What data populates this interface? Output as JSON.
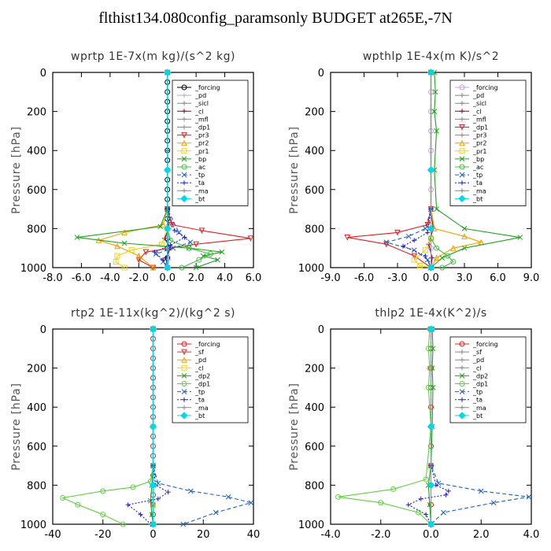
{
  "page": {
    "title": "flthist134.080config_paramsonly  BUDGET at265E,-7N"
  },
  "chart_data": [
    {
      "type": "line",
      "panel": "top-left",
      "title": "wprtp  1E-7x(m kg)/(s^2 kg)",
      "ylabel": "Pressure [hPa]",
      "xlim": [
        -8,
        6
      ],
      "ylim": [
        0,
        1000
      ],
      "y_inverted": true,
      "xticks": [
        -8,
        -6,
        -4,
        -2,
        0,
        2,
        4,
        6
      ],
      "xtick_labels": [
        "-8.0",
        "-6.0",
        "-4.0",
        "-2.0",
        "0.0",
        "2.0",
        "4.0",
        "6.0"
      ],
      "yticks": [
        0,
        200,
        400,
        600,
        800,
        1000
      ],
      "legend": [
        "_forcing",
        "_pd",
        "_sicl",
        "_cl",
        "_mfl",
        "_dp1",
        "_pr3",
        "_pr2",
        "_pr1",
        "_bp",
        "_ac",
        "_tp",
        "_ta",
        "_ma",
        "_bt"
      ],
      "legend_position": "top-right",
      "series": [
        {
          "name": "_forcing",
          "color": "#000000",
          "dash": "",
          "marker": "o",
          "x": [
            0,
            0,
            0,
            0,
            0,
            0,
            0,
            0,
            0,
            0,
            0,
            0,
            0,
            0,
            0,
            0,
            0,
            0,
            0,
            0,
            0
          ],
          "y": [
            0,
            50,
            100,
            150,
            200,
            250,
            300,
            350,
            400,
            450,
            500,
            550,
            600,
            650,
            700,
            750,
            800,
            850,
            900,
            950,
            1000
          ]
        },
        {
          "name": "_pd",
          "color": "#c8a0d8",
          "dash": "",
          "marker": "+",
          "x": [
            0,
            0,
            0,
            0.05,
            0.05,
            0.1,
            0.1,
            0.05
          ],
          "y": [
            0,
            400,
            700,
            780,
            840,
            900,
            960,
            1000
          ]
        },
        {
          "name": "_cl",
          "color": "#800040",
          "dash": "",
          "marker": "+",
          "x": [
            0,
            0,
            0,
            0.1,
            -0.2,
            0.2,
            -0.1,
            0
          ],
          "y": [
            0,
            400,
            700,
            800,
            850,
            900,
            950,
            1000
          ]
        },
        {
          "name": "_pr3",
          "color": "#e02020",
          "dash": "",
          "marker": "v",
          "x": [
            0,
            0,
            0.3,
            2.4,
            5.8,
            2.0,
            -1.5,
            -2.0,
            -1.0
          ],
          "y": [
            0,
            700,
            780,
            810,
            850,
            880,
            920,
            960,
            1000
          ]
        },
        {
          "name": "_pr2",
          "color": "#f0a000",
          "dash": "",
          "marker": "^",
          "x": [
            0,
            0,
            -0.3,
            -3.0,
            -4.8,
            -3.5,
            -2.0,
            -1.0
          ],
          "y": [
            0,
            700,
            780,
            820,
            860,
            890,
            940,
            1000
          ]
        },
        {
          "name": "_pr1",
          "color": "#f0d020",
          "dash": "",
          "marker": "s",
          "x": [
            0,
            0,
            -0.4,
            -2.5,
            -3.5,
            -3.6,
            -3.0
          ],
          "y": [
            0,
            800,
            880,
            910,
            940,
            970,
            1000
          ]
        },
        {
          "name": "_bp",
          "color": "#20a020",
          "dash": "",
          "marker": "x",
          "x": [
            0,
            0,
            -0.5,
            -6.3,
            -3.0,
            1.5,
            3.8,
            2.5,
            3.5,
            2.0
          ],
          "y": [
            0,
            700,
            790,
            845,
            875,
            900,
            920,
            940,
            960,
            1000
          ]
        },
        {
          "name": "_ac",
          "color": "#40c040",
          "dash": "",
          "marker": "o",
          "x": [
            0,
            0,
            0.2,
            1.5,
            3.0,
            2.2,
            1.0
          ],
          "y": [
            0,
            800,
            860,
            900,
            930,
            960,
            1000
          ]
        },
        {
          "name": "_tp",
          "color": "#2060c0",
          "dash": "5,3",
          "marker": "x",
          "x": [
            0,
            0,
            0.8,
            1.6,
            0.4,
            -0.8,
            -0.3,
            0
          ],
          "y": [
            0,
            700,
            820,
            870,
            900,
            930,
            970,
            1000
          ]
        },
        {
          "name": "_ta",
          "color": "#2020c0",
          "dash": "2,2",
          "marker": "+",
          "x": [
            0,
            0,
            0.5,
            1.2,
            0.2,
            -0.9,
            -0.3,
            0
          ],
          "y": [
            0,
            700,
            810,
            845,
            885,
            920,
            960,
            1000
          ]
        },
        {
          "name": "_bt",
          "color": "#00d8e8",
          "dash": "",
          "marker": "d",
          "x": [
            0,
            0,
            0,
            0
          ],
          "y": [
            0,
            500,
            800,
            1000
          ]
        }
      ]
    },
    {
      "type": "line",
      "panel": "top-right",
      "title": "wpthlp  1E-4x(m K)/s^2",
      "ylabel": "Pressure [hPa]",
      "xlim": [
        -9,
        9
      ],
      "ylim": [
        0,
        1000
      ],
      "y_inverted": true,
      "xticks": [
        -9,
        -6,
        -3,
        0,
        3,
        6,
        9
      ],
      "xtick_labels": [
        "-9.0",
        "-6.0",
        "-3.0",
        "0.0",
        "3.0",
        "6.0",
        "9.0"
      ],
      "yticks": [
        0,
        200,
        400,
        600,
        800,
        1000
      ],
      "legend": [
        "_forcing",
        "_pd",
        "_sicl",
        "_cl",
        "_mfl",
        "_dp1",
        "_pr3",
        "_pr2",
        "_pr1",
        "_bp",
        "_ac",
        "_tp",
        "_ta",
        "_ma",
        "_bt"
      ],
      "legend_position": "top-right",
      "series": [
        {
          "name": "_forcing",
          "color": "#c8a0d8",
          "dash": "",
          "marker": "o",
          "x": [
            0,
            0,
            0,
            0,
            0,
            0,
            0,
            0,
            0,
            0,
            0
          ],
          "y": [
            0,
            100,
            200,
            300,
            400,
            500,
            600,
            700,
            800,
            900,
            1000
          ]
        },
        {
          "name": "_cl",
          "color": "#800040",
          "dash": "",
          "marker": "+",
          "x": [
            0,
            0,
            0.2,
            -0.2,
            0.1,
            0
          ],
          "y": [
            0,
            700,
            800,
            880,
            950,
            1000
          ]
        },
        {
          "name": "_dp1",
          "color": "#e02020",
          "dash": "",
          "marker": "v",
          "x": [
            0,
            0,
            -0.3,
            -3.0,
            -7.5,
            -4.0,
            -1.5,
            0
          ],
          "y": [
            0,
            700,
            780,
            820,
            845,
            880,
            940,
            1000
          ]
        },
        {
          "name": "_pr2",
          "color": "#f0a000",
          "dash": "",
          "marker": "^",
          "x": [
            0,
            0,
            0.3,
            3.0,
            4.5,
            2.0,
            0.5,
            0
          ],
          "y": [
            0,
            700,
            800,
            840,
            870,
            900,
            950,
            1000
          ]
        },
        {
          "name": "_pr1",
          "color": "#f0d020",
          "dash": "",
          "marker": "s",
          "x": [
            0,
            0,
            -0.5,
            -1.5,
            -1.0,
            0
          ],
          "y": [
            0,
            850,
            910,
            960,
            990,
            1000
          ]
        },
        {
          "name": "_bp",
          "color": "#20a020",
          "dash": "",
          "marker": "x",
          "x": [
            0.3,
            0.4,
            0.3,
            0.5,
            0.3,
            0.5,
            3.0,
            8.0,
            3.0,
            1.0,
            0
          ],
          "y": [
            0,
            100,
            200,
            300,
            500,
            700,
            800,
            845,
            900,
            950,
            1000
          ]
        },
        {
          "name": "_ac",
          "color": "#40c040",
          "dash": "",
          "marker": "o",
          "x": [
            0,
            0,
            0.5,
            1.5,
            2.0,
            1.0
          ],
          "y": [
            0,
            850,
            900,
            940,
            970,
            1000
          ]
        },
        {
          "name": "_tp",
          "color": "#2060c0",
          "dash": "5,3",
          "marker": "x",
          "x": [
            0,
            0,
            -0.5,
            -2.0,
            -4.0,
            -1.5,
            -0.3,
            0
          ],
          "y": [
            0,
            700,
            800,
            840,
            870,
            910,
            960,
            1000
          ]
        },
        {
          "name": "_ta",
          "color": "#2020c0",
          "dash": "2,2",
          "marker": "+",
          "x": [
            0,
            0,
            -0.3,
            -1.5,
            -2.5,
            -0.5,
            0
          ],
          "y": [
            0,
            700,
            820,
            860,
            890,
            940,
            1000
          ]
        },
        {
          "name": "_bt",
          "color": "#00d8e8",
          "dash": "",
          "marker": "d",
          "x": [
            0,
            0,
            0,
            0
          ],
          "y": [
            0,
            500,
            800,
            1000
          ]
        }
      ]
    },
    {
      "type": "line",
      "panel": "bottom-left",
      "title": "rtp2  1E-11x(kg^2)/(kg^2 s)",
      "ylabel": "Pressure [hPa]",
      "xlim": [
        -40,
        40
      ],
      "ylim": [
        0,
        1000
      ],
      "y_inverted": true,
      "xticks": [
        -40,
        -20,
        0,
        20,
        40
      ],
      "xtick_labels": [
        "-40",
        "-20",
        "0",
        "20",
        "40"
      ],
      "yticks": [
        0,
        200,
        400,
        600,
        800,
        1000
      ],
      "legend": [
        "_forcing",
        "_sf",
        "_pd",
        "_cl",
        "_dp2",
        "_dp1",
        "_tp",
        "_ta",
        "_ma",
        "_bt"
      ],
      "legend_position": "top-right",
      "series": [
        {
          "name": "_forcing",
          "color": "#e02020",
          "dash": "",
          "marker": "o",
          "x": [
            0,
            0,
            0,
            0,
            0,
            0,
            0,
            0,
            0,
            0,
            0,
            0,
            0,
            0,
            0,
            0,
            0,
            0,
            0,
            0,
            0
          ],
          "y": [
            0,
            50,
            100,
            150,
            200,
            250,
            300,
            350,
            400,
            450,
            500,
            550,
            600,
            650,
            700,
            750,
            800,
            850,
            900,
            950,
            1000
          ]
        },
        {
          "name": "_sf",
          "color": "#e03030",
          "dash": "",
          "marker": "v",
          "x": [
            0,
            0,
            0,
            0
          ],
          "y": [
            0,
            500,
            900,
            1000
          ]
        },
        {
          "name": "_pd",
          "color": "#f0a000",
          "dash": "",
          "marker": "^",
          "x": [
            0,
            0,
            0,
            0
          ],
          "y": [
            0,
            500,
            900,
            1000
          ]
        },
        {
          "name": "_cl",
          "color": "#f0d020",
          "dash": "",
          "marker": "s",
          "x": [
            0,
            0,
            0,
            0
          ],
          "y": [
            0,
            500,
            900,
            1000
          ]
        },
        {
          "name": "_dp2",
          "color": "#20a020",
          "dash": "",
          "marker": "x",
          "x": [
            0,
            0,
            -0.5,
            -1.0,
            -0.5,
            0
          ],
          "y": [
            0,
            700,
            800,
            880,
            950,
            1000
          ]
        },
        {
          "name": "_dp1",
          "color": "#60d040",
          "dash": "",
          "marker": "o",
          "x": [
            0,
            0,
            -1.0,
            -8.0,
            -20.0,
            -36.0,
            -30.0,
            -20.0,
            -12.0
          ],
          "y": [
            0,
            700,
            780,
            810,
            830,
            865,
            900,
            950,
            1000
          ]
        },
        {
          "name": "_tp",
          "color": "#2060c0",
          "dash": "5,3",
          "marker": "x",
          "x": [
            0,
            0,
            2.0,
            15.0,
            30.0,
            39.0,
            25.0,
            12.0
          ],
          "y": [
            0,
            700,
            790,
            830,
            860,
            890,
            940,
            1000
          ]
        },
        {
          "name": "_ta",
          "color": "#2020c0",
          "dash": "2,2",
          "marker": "+",
          "x": [
            0,
            0,
            1.0,
            6.0,
            2.0,
            -10.0,
            -5.0,
            -1.0
          ],
          "y": [
            0,
            700,
            800,
            835,
            870,
            900,
            950,
            1000
          ]
        },
        {
          "name": "_bt",
          "color": "#00d8e8",
          "dash": "",
          "marker": "d",
          "x": [
            0,
            0,
            0,
            0
          ],
          "y": [
            0,
            500,
            800,
            1000
          ]
        }
      ]
    },
    {
      "type": "line",
      "panel": "bottom-right",
      "title": "thlp2  1E-4x(K^2)/s",
      "ylabel": "Pressure [hPa]",
      "xlim": [
        -4,
        4
      ],
      "ylim": [
        0,
        1000
      ],
      "y_inverted": true,
      "xticks": [
        -4,
        -2,
        0,
        2,
        4
      ],
      "xtick_labels": [
        "-4.0",
        "-2.0",
        "0.0",
        "2.0",
        "4.0"
      ],
      "yticks": [
        0,
        200,
        400,
        600,
        800,
        1000
      ],
      "legend": [
        "_forcing",
        "_sf",
        "_pd",
        "_cl",
        "_dp2",
        "_dp1",
        "_tp",
        "_ta",
        "_ma",
        "_bt"
      ],
      "legend_position": "top-right",
      "series": [
        {
          "name": "_forcing",
          "color": "#e02020",
          "dash": "",
          "marker": "o",
          "x": [
            0,
            0,
            0,
            0,
            0,
            0,
            0,
            0,
            0,
            0,
            0
          ],
          "y": [
            0,
            100,
            200,
            300,
            400,
            500,
            600,
            700,
            800,
            900,
            1000
          ]
        },
        {
          "name": "_dp2",
          "color": "#20a020",
          "dash": "",
          "marker": "x",
          "x": [
            0.05,
            0.08,
            0.05,
            0.08,
            0.05,
            0.0,
            -0.1,
            -0.05,
            0
          ],
          "y": [
            0,
            100,
            200,
            300,
            500,
            700,
            800,
            900,
            1000
          ]
        },
        {
          "name": "_dp1",
          "color": "#60d040",
          "dash": "",
          "marker": "o",
          "x": [
            -0.05,
            -0.1,
            -0.05,
            -0.1,
            0,
            -0.2,
            -1.5,
            -3.7,
            -2.0,
            -0.5,
            0
          ],
          "y": [
            0,
            100,
            200,
            300,
            500,
            770,
            820,
            860,
            890,
            940,
            1000
          ]
        },
        {
          "name": "_tp",
          "color": "#2060c0",
          "dash": "5,3",
          "marker": "x",
          "x": [
            0,
            0,
            0.3,
            2.0,
            3.9,
            2.5,
            0.5,
            0
          ],
          "y": [
            0,
            700,
            790,
            830,
            860,
            890,
            940,
            1000
          ]
        },
        {
          "name": "_ta",
          "color": "#2020c0",
          "dash": "2,2",
          "marker": "+",
          "x": [
            0,
            0,
            0.2,
            0.7,
            0.6,
            -0.4,
            -0.9,
            -0.2,
            0
          ],
          "y": [
            0,
            700,
            800,
            830,
            850,
            870,
            900,
            950,
            1000
          ]
        },
        {
          "name": "_bt",
          "color": "#00d8e8",
          "dash": "",
          "marker": "d",
          "x": [
            0,
            0,
            0,
            0
          ],
          "y": [
            0,
            500,
            800,
            1000
          ]
        }
      ]
    }
  ]
}
